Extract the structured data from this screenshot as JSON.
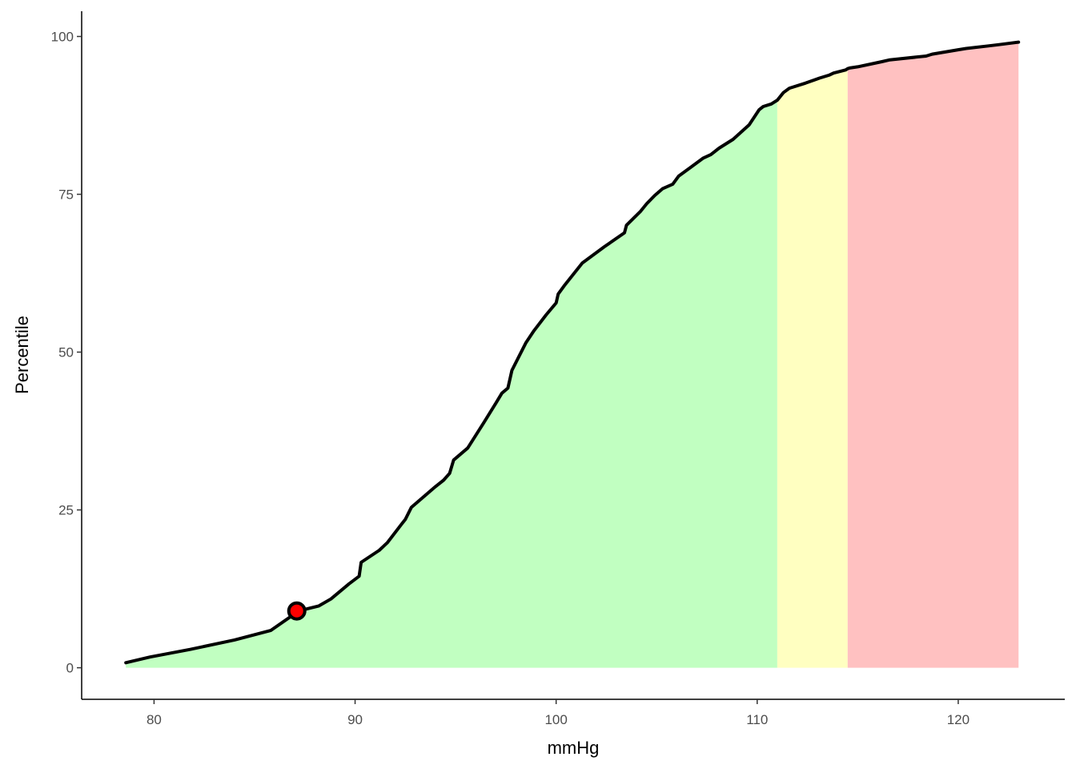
{
  "chart_data": {
    "type": "area",
    "title": "",
    "xlabel": "mmHg",
    "ylabel": "Percentile",
    "xlim": [
      76.4,
      125.3
    ],
    "ylim": [
      -5,
      104
    ],
    "x_ticks": [
      80,
      90,
      100,
      110,
      120
    ],
    "x_tick_labels": [
      "80",
      "90",
      "100",
      "110",
      "120"
    ],
    "y_ticks": [
      0,
      25,
      50,
      75,
      100
    ],
    "y_tick_labels": [
      "0",
      "25",
      "50",
      "75",
      "100"
    ],
    "grid": false,
    "legend": "none",
    "bands": [
      {
        "from": 78.6,
        "to": 111.0,
        "color": "#c1ffc1"
      },
      {
        "from": 111.0,
        "to": 114.5,
        "color": "#ffffc1"
      },
      {
        "from": 114.5,
        "to": 123.0,
        "color": "#ffc1c1"
      }
    ],
    "series": [
      {
        "line_color": "#000000",
        "x": [
          78.6,
          79.8,
          81.8,
          84.0,
          85.8,
          87.2,
          88.2,
          88.8,
          89.7,
          90.2,
          90.3,
          91.2,
          91.6,
          92.3,
          92.5,
          92.8,
          94.0,
          94.4,
          94.7,
          94.9,
          95.6,
          96.4,
          97.0,
          97.3,
          97.6,
          97.8,
          98.5,
          98.9,
          99.5,
          100.0,
          100.1,
          100.4,
          101.3,
          102.4,
          103.4,
          103.5,
          104.2,
          104.5,
          104.9,
          105.3,
          105.8,
          106.1,
          106.7,
          107.3,
          107.7,
          108.1,
          108.8,
          109.6,
          110.1,
          110.3,
          110.7,
          111.0,
          111.3,
          111.6,
          112.4,
          113.1,
          113.6,
          113.8,
          114.4,
          114.5,
          114.6,
          115.0,
          116.2,
          116.6,
          118.4,
          118.7,
          120.0,
          120.4,
          121.5,
          122.0,
          123.0
        ],
        "y": [
          0.8,
          1.7,
          2.9,
          4.4,
          5.9,
          9.0,
          9.8,
          10.9,
          13.3,
          14.5,
          16.7,
          18.6,
          19.8,
          22.7,
          23.5,
          25.4,
          28.7,
          29.7,
          30.8,
          32.9,
          34.8,
          38.8,
          41.9,
          43.5,
          44.3,
          47.1,
          51.5,
          53.4,
          55.9,
          57.8,
          59.2,
          60.5,
          64.1,
          66.7,
          68.9,
          70.1,
          72.3,
          73.5,
          74.8,
          75.9,
          76.6,
          77.9,
          79.3,
          80.7,
          81.3,
          82.3,
          83.7,
          86.0,
          88.4,
          88.9,
          89.3,
          89.9,
          91.1,
          91.8,
          92.6,
          93.4,
          93.9,
          94.2,
          94.7,
          94.9,
          95.0,
          95.2,
          96.0,
          96.3,
          96.9,
          97.2,
          97.9,
          98.1,
          98.5,
          98.7,
          99.1
        ]
      }
    ],
    "highlight_point": {
      "x": 87.1,
      "y": 9.0,
      "color": "#ff0000",
      "stroke": "#000000"
    }
  }
}
